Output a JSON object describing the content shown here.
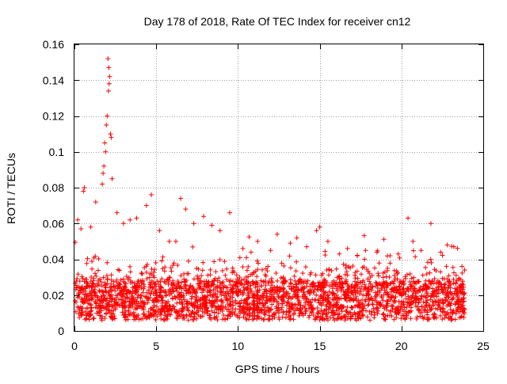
{
  "chart_data": {
    "type": "scatter",
    "title": "Day 178 of 2018, Rate Of TEC Index for receiver cn12",
    "xlabel": "GPS time / hours",
    "ylabel": "ROTI / TECUs",
    "xlim": [
      0,
      25
    ],
    "ylim": [
      0,
      0.16
    ],
    "x_ticks": [
      "0",
      "5",
      "10",
      "15",
      "20",
      "25"
    ],
    "y_ticks": [
      "0",
      "0.02",
      "0.04",
      "0.06",
      "0.08",
      "0.1",
      "0.12",
      "0.14",
      "0.16"
    ],
    "grid": true,
    "marker": "+",
    "series": [
      {
        "name": "ROTI",
        "color": "#ff0000",
        "points": [
          [
            2.05,
            0.152
          ],
          [
            2.1,
            0.147
          ],
          [
            2.15,
            0.142
          ],
          [
            2.12,
            0.138
          ],
          [
            2.08,
            0.134
          ],
          [
            2.0,
            0.12
          ],
          [
            1.95,
            0.115
          ],
          [
            2.2,
            0.11
          ],
          [
            2.25,
            0.108
          ],
          [
            1.85,
            0.105
          ],
          [
            1.9,
            0.1
          ],
          [
            1.8,
            0.092
          ],
          [
            1.75,
            0.088
          ],
          [
            2.3,
            0.085
          ],
          [
            1.7,
            0.082
          ],
          [
            0.6,
            0.08
          ],
          [
            0.55,
            0.078
          ],
          [
            4.7,
            0.076
          ],
          [
            6.5,
            0.074
          ],
          [
            1.3,
            0.072
          ],
          [
            4.4,
            0.07
          ],
          [
            6.8,
            0.068
          ],
          [
            9.5,
            0.066
          ],
          [
            0.2,
            0.062
          ],
          [
            7.9,
            0.064
          ],
          [
            20.4,
            0.063
          ],
          [
            21.8,
            0.06
          ],
          [
            15.0,
            0.058
          ],
          [
            2.6,
            0.066
          ],
          [
            3.4,
            0.062
          ],
          [
            5.2,
            0.056
          ],
          [
            8.9,
            0.056
          ],
          [
            11.2,
            0.05
          ],
          [
            12.4,
            0.054
          ],
          [
            13.6,
            0.052
          ],
          [
            14.8,
            0.056
          ],
          [
            16.7,
            0.046
          ],
          [
            17.8,
            0.045
          ],
          [
            18.5,
            0.044
          ],
          [
            19.3,
            0.042
          ],
          [
            20.7,
            0.05
          ],
          [
            22.8,
            0.048
          ],
          [
            23.2,
            0.047
          ],
          [
            0.4,
            0.057
          ],
          [
            1.0,
            0.058
          ],
          [
            3.0,
            0.06
          ],
          [
            3.8,
            0.063
          ],
          [
            5.8,
            0.05
          ],
          [
            6.2,
            0.05
          ],
          [
            7.3,
            0.06
          ],
          [
            8.4,
            0.059
          ],
          [
            10.3,
            0.046
          ],
          [
            10.8,
            0.044
          ],
          [
            12.0,
            0.045
          ],
          [
            13.2,
            0.049
          ],
          [
            14.2,
            0.047
          ],
          [
            15.5,
            0.05
          ],
          [
            16.2,
            0.043
          ],
          [
            17.3,
            0.042
          ],
          [
            19.8,
            0.043
          ],
          [
            21.2,
            0.045
          ],
          [
            22.4,
            0.044
          ],
          [
            23.7,
            0.036
          ]
        ]
      }
    ]
  }
}
